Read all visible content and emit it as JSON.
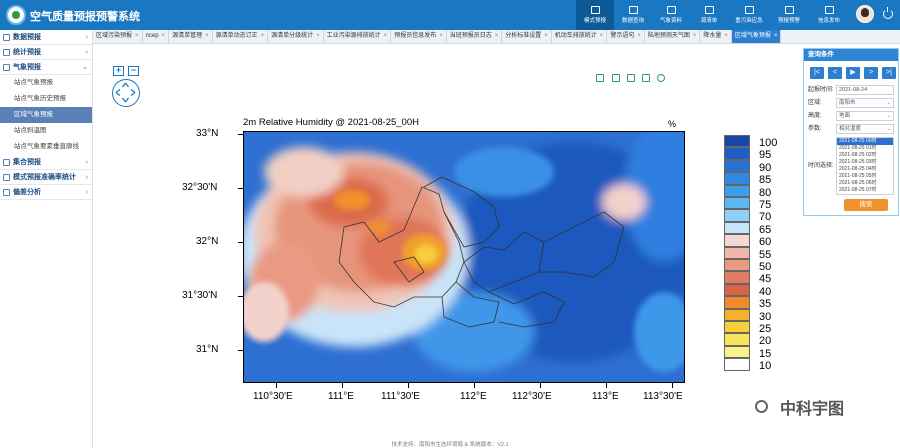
{
  "app": {
    "title": "空气质量预报预警系统"
  },
  "nav": [
    {
      "label": "模式预报"
    },
    {
      "label": "数据查询"
    },
    {
      "label": "气象资料"
    },
    {
      "label": "源清单"
    },
    {
      "label": "重污染应急"
    },
    {
      "label": "预报预警"
    },
    {
      "label": "信息发布"
    }
  ],
  "sidebar": {
    "groups": [
      {
        "label": "数据预报"
      },
      {
        "label": "统计预报"
      },
      {
        "label": "气象预报"
      },
      {
        "label": "集合预报"
      },
      {
        "label": "模式预报准确率统计"
      },
      {
        "label": "偏差分析"
      }
    ],
    "items": [
      {
        "label": "站点气象预报"
      },
      {
        "label": "站点气象历史预报"
      },
      {
        "label": "区域气象预报"
      },
      {
        "label": "站点斜温图"
      },
      {
        "label": "站点气象要素垂直廓线"
      }
    ]
  },
  "tabs": [
    "区域污染预报",
    "ncep",
    "源清单管理",
    "源清单动态订正",
    "源清单分级统计",
    "工业污染源排放统计",
    "预报员信息发布",
    "当班预报员日志",
    "分析标准设置",
    "机动车排放统计",
    "警示语句",
    "陆地预测天气图",
    "降水量",
    "区域气象预报"
  ],
  "query": {
    "title": "查询条件",
    "start_label": "起报时间:",
    "start_value": "2021-08-24",
    "region_label": "区域:",
    "region_value": "南阳市",
    "height_label": "高度:",
    "height_value": "地面",
    "param_label": "参数:",
    "param_value": "相对湿度",
    "time_label": "时间选择:",
    "times": [
      "2021-08-25 00时",
      "2021-08-25 01时",
      "2021-08-25 02时",
      "2021-08-25 03时",
      "2021-08-25 04时",
      "2021-08-25 05时",
      "2021-08-25 06时",
      "2021-08-25 07时"
    ],
    "search_label": "搜索"
  },
  "map": {
    "title": "2m Relative Humidity @ 2021-08-25_00H",
    "unit": "%",
    "lat_labels": [
      "33°N",
      "32°30'N",
      "32°N",
      "31°30'N",
      "31°N"
    ],
    "lon_labels": [
      "110°30'E",
      "111°E",
      "111°30'E",
      "112°E",
      "112°30'E",
      "113°E",
      "113°30'E"
    ],
    "colorbar_labels": [
      "100",
      "95",
      "90",
      "85",
      "80",
      "75",
      "70",
      "65",
      "60",
      "55",
      "50",
      "45",
      "40",
      "35",
      "30",
      "25",
      "20",
      "15",
      "10"
    ],
    "colorbar_colors": [
      "#1646a8",
      "#1d5fc7",
      "#2573d8",
      "#2f88e2",
      "#3aa0ea",
      "#5cb8f0",
      "#8ed0f6",
      "#c7e6fa",
      "#f4d6d2",
      "#efb8a8",
      "#e89a82",
      "#e07c62",
      "#d96446",
      "#f0892a",
      "#f6b12c",
      "#f8cf3a",
      "#f9e45a",
      "#fbf18a",
      "#ffffff"
    ],
    "watermark": "中科宇图",
    "footer": "技术支持：南阳市生态环境局 & 系统版本：V2.1"
  }
}
